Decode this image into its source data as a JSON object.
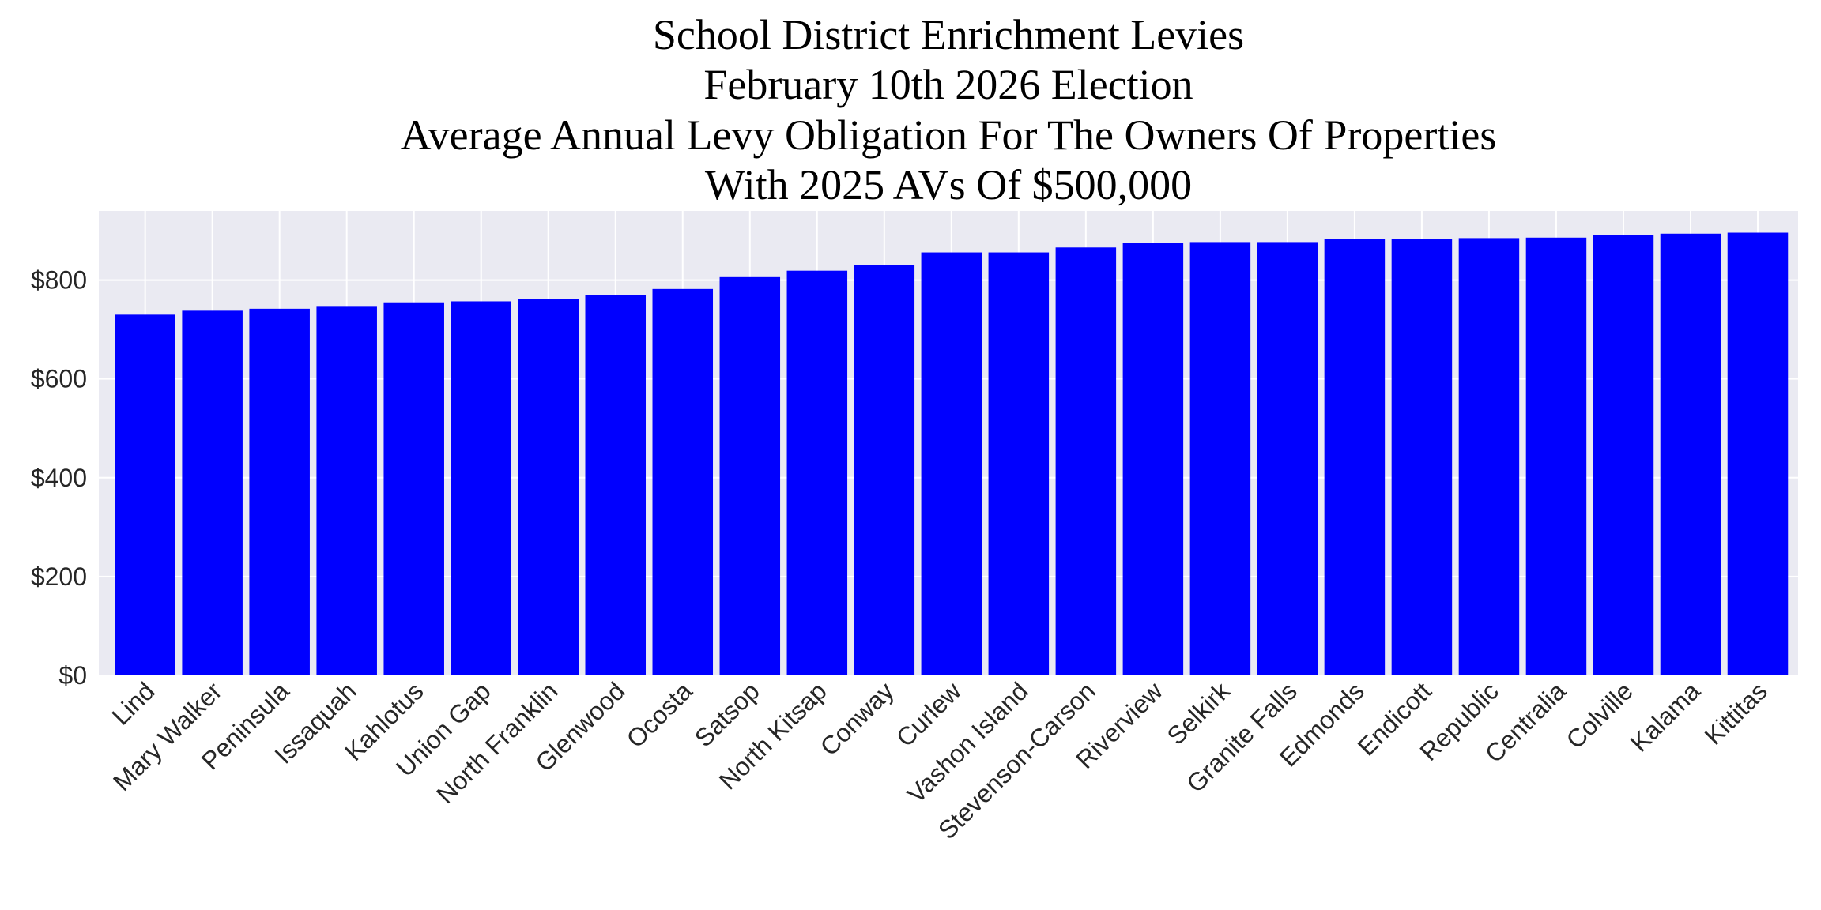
{
  "chart_data": {
    "type": "bar",
    "title_lines": [
      "School District Enrichment Levies",
      "February 10th 2026 Election",
      "Average Annual Levy Obligation For The Owners Of Properties",
      "With 2025 AVs Of $500,000"
    ],
    "xlabel": "",
    "ylabel": "",
    "categories": [
      "Lind",
      "Mary Walker",
      "Peninsula",
      "Issaquah",
      "Kahlotus",
      "Union Gap",
      "North Franklin",
      "Glenwood",
      "Ocosta",
      "Satsop",
      "North Kitsap",
      "Conway",
      "Curlew",
      "Vashon Island",
      "Stevenson-Carson",
      "Riverview",
      "Selkirk",
      "Granite Falls",
      "Edmonds",
      "Endicott",
      "Republic",
      "Centralia",
      "Colville",
      "Kalama",
      "Kittitas"
    ],
    "values": [
      730,
      738,
      742,
      746,
      755,
      757,
      762,
      770,
      782,
      806,
      819,
      830,
      856,
      856,
      866,
      875,
      877,
      877,
      883,
      883,
      885,
      886,
      891,
      894,
      896
    ],
    "ylim": [
      0,
      940
    ],
    "yticks": [
      0,
      200,
      400,
      600,
      800
    ],
    "ytick_labels": [
      "$0",
      "$200",
      "$400",
      "$600",
      "$800"
    ],
    "grid": true,
    "bar_color": "#0000ff",
    "background_color": "#eaeaf2"
  }
}
